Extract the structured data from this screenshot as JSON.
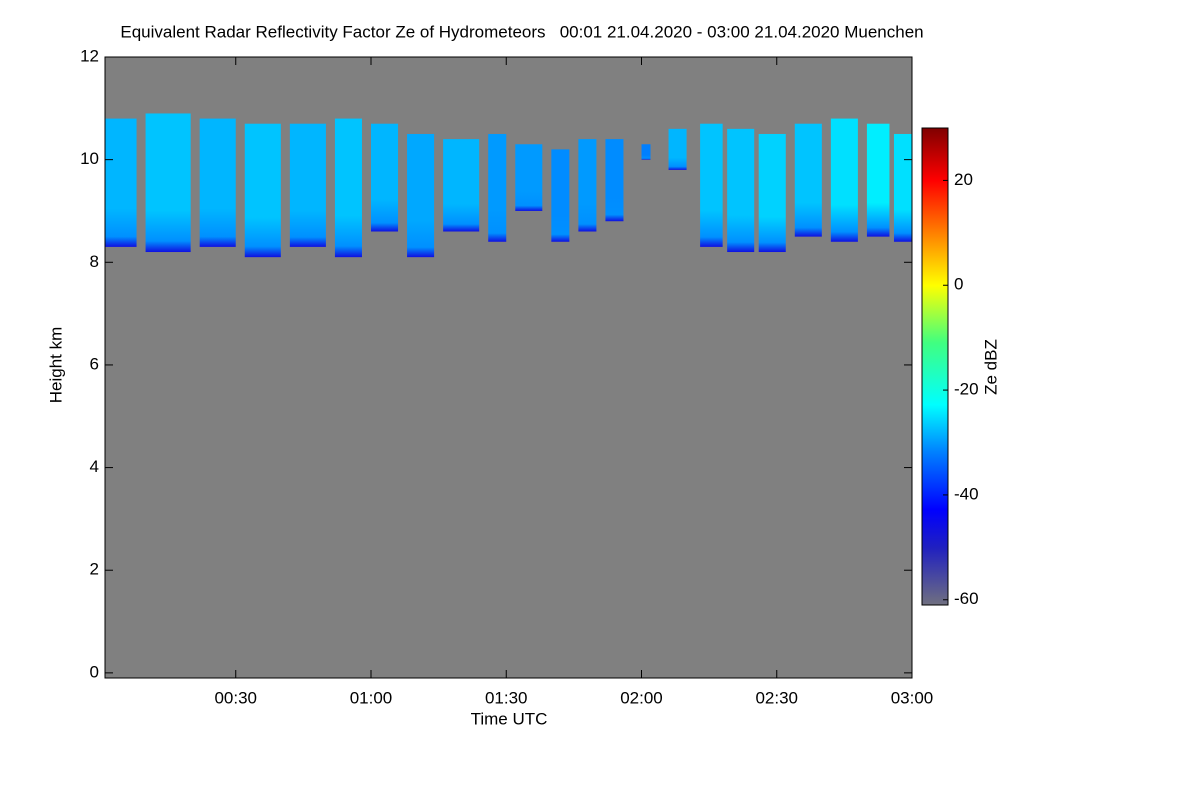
{
  "chart_data": {
    "type": "time-height",
    "title": "Equivalent Radar Reflectivity Factor Ze of Hydrometeors   00:01 21.04.2020 - 03:00 21.04.2020 Muenchen",
    "x_label": "Time UTC",
    "y_label": "Height km",
    "colorbar_label": "Ze dBZ",
    "background_color": "#808080",
    "xlim": [
      1,
      180
    ],
    "xticks": [
      {
        "value": 30,
        "label": "00:30"
      },
      {
        "value": 60,
        "label": "01:00"
      },
      {
        "value": 90,
        "label": "01:30"
      },
      {
        "value": 120,
        "label": "02:00"
      },
      {
        "value": 150,
        "label": "02:30"
      },
      {
        "value": 180,
        "label": "03:00"
      }
    ],
    "ylim": [
      -0.1,
      12
    ],
    "yticks": [
      0,
      2,
      4,
      6,
      8,
      10,
      12
    ],
    "clim": [
      -61,
      30
    ],
    "cticks": [
      -60,
      -40,
      -20,
      0,
      20
    ],
    "segments": [
      {
        "start": 1,
        "end": 8,
        "base": 8.3,
        "top": 10.8,
        "ze": -28
      },
      {
        "start": 10,
        "end": 20,
        "base": 8.2,
        "top": 10.9,
        "ze": -27
      },
      {
        "start": 22,
        "end": 30,
        "base": 8.3,
        "top": 10.8,
        "ze": -28
      },
      {
        "start": 32,
        "end": 40,
        "base": 8.1,
        "top": 10.7,
        "ze": -27
      },
      {
        "start": 42,
        "end": 50,
        "base": 8.3,
        "top": 10.7,
        "ze": -28
      },
      {
        "start": 52,
        "end": 58,
        "base": 8.1,
        "top": 10.8,
        "ze": -27
      },
      {
        "start": 60,
        "end": 66,
        "base": 8.6,
        "top": 10.7,
        "ze": -28
      },
      {
        "start": 68,
        "end": 74,
        "base": 8.1,
        "top": 10.5,
        "ze": -29
      },
      {
        "start": 76,
        "end": 84,
        "base": 8.6,
        "top": 10.4,
        "ze": -28
      },
      {
        "start": 86,
        "end": 90,
        "base": 8.4,
        "top": 10.5,
        "ze": -30
      },
      {
        "start": 92,
        "end": 98,
        "base": 9.0,
        "top": 10.3,
        "ze": -30
      },
      {
        "start": 100,
        "end": 104,
        "base": 8.4,
        "top": 10.2,
        "ze": -31
      },
      {
        "start": 106,
        "end": 110,
        "base": 8.6,
        "top": 10.4,
        "ze": -30
      },
      {
        "start": 112,
        "end": 116,
        "base": 8.8,
        "top": 10.4,
        "ze": -31
      },
      {
        "start": 120,
        "end": 122,
        "base": 10.0,
        "top": 10.3,
        "ze": -32
      },
      {
        "start": 126,
        "end": 130,
        "base": 9.8,
        "top": 10.6,
        "ze": -28
      },
      {
        "start": 133,
        "end": 138,
        "base": 8.3,
        "top": 10.7,
        "ze": -27
      },
      {
        "start": 139,
        "end": 145,
        "base": 8.2,
        "top": 10.6,
        "ze": -27
      },
      {
        "start": 146,
        "end": 152,
        "base": 8.2,
        "top": 10.5,
        "ze": -26
      },
      {
        "start": 154,
        "end": 160,
        "base": 8.5,
        "top": 10.7,
        "ze": -27
      },
      {
        "start": 162,
        "end": 168,
        "base": 8.4,
        "top": 10.8,
        "ze": -25
      },
      {
        "start": 170,
        "end": 175,
        "base": 8.5,
        "top": 10.7,
        "ze": -24
      },
      {
        "start": 176,
        "end": 180,
        "base": 8.4,
        "top": 10.5,
        "ze": -25
      }
    ]
  }
}
